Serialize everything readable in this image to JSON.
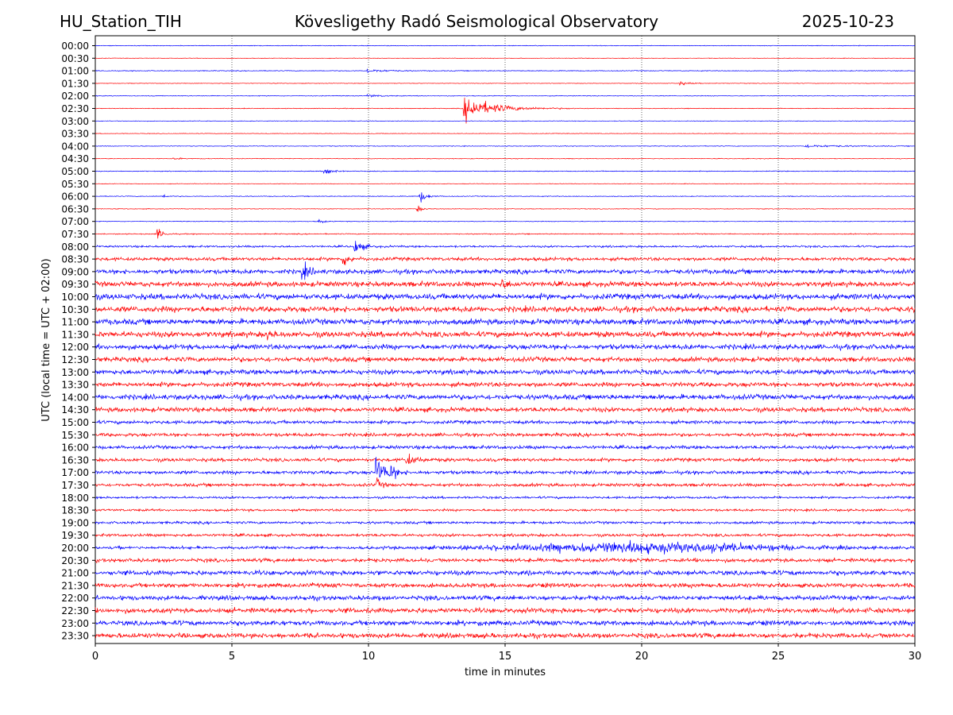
{
  "header": {
    "station": "HU_Station_TIH",
    "observatory": "Kövesligethy Radó Seismological Observatory",
    "date": "2025-10-23"
  },
  "chart_data": {
    "type": "line",
    "title": "Kövesligethy Radó Seismological Observatory",
    "xlabel": "time in minutes",
    "ylabel": "UTC (local time = UTC + 02:00)",
    "xlim": [
      0,
      30
    ],
    "xticks": [
      0,
      5,
      10,
      15,
      20,
      25,
      30
    ],
    "grid": "vertical dotted lines at 5-minute intervals",
    "colors": {
      "even": "#0000ff",
      "odd": "#ff0000"
    },
    "rows": [
      {
        "label": "00:00",
        "noise": 0.12,
        "events": []
      },
      {
        "label": "00:30",
        "noise": 0.1,
        "events": []
      },
      {
        "label": "01:00",
        "noise": 0.14,
        "events": [
          {
            "t": 10.0,
            "amp": 0.6,
            "dur": 1.5
          }
        ]
      },
      {
        "label": "01:30",
        "noise": 0.1,
        "events": [
          {
            "t": 21.4,
            "amp": 0.6,
            "dur": 0.8
          }
        ]
      },
      {
        "label": "02:00",
        "noise": 0.12,
        "events": [
          {
            "t": 10.0,
            "amp": 0.5,
            "dur": 1.0
          }
        ]
      },
      {
        "label": "02:30",
        "noise": 0.12,
        "events": [
          {
            "t": 13.5,
            "amp": 4.5,
            "dur": 2.5
          }
        ]
      },
      {
        "label": "03:00",
        "noise": 0.1,
        "events": []
      },
      {
        "label": "03:30",
        "noise": 0.1,
        "events": []
      },
      {
        "label": "04:00",
        "noise": 0.12,
        "events": [
          {
            "t": 26.0,
            "amp": 0.5,
            "dur": 3.0
          }
        ]
      },
      {
        "label": "04:30",
        "noise": 0.12,
        "events": [
          {
            "t": 2.9,
            "amp": 0.5,
            "dur": 0.4
          }
        ]
      },
      {
        "label": "05:00",
        "noise": 0.14,
        "events": [
          {
            "t": 8.4,
            "amp": 2.2,
            "dur": 0.5
          }
        ]
      },
      {
        "label": "05:30",
        "noise": 0.1,
        "events": []
      },
      {
        "label": "06:00",
        "noise": 0.14,
        "events": [
          {
            "t": 11.9,
            "amp": 2.2,
            "dur": 0.5
          },
          {
            "t": 2.5,
            "amp": 0.7,
            "dur": 0.3
          }
        ]
      },
      {
        "label": "06:30",
        "noise": 0.12,
        "events": [
          {
            "t": 11.8,
            "amp": 1.2,
            "dur": 0.4
          }
        ]
      },
      {
        "label": "07:00",
        "noise": 0.12,
        "events": [
          {
            "t": 8.2,
            "amp": 0.7,
            "dur": 0.4
          }
        ]
      },
      {
        "label": "07:30",
        "noise": 0.18,
        "events": [
          {
            "t": 2.3,
            "amp": 1.8,
            "dur": 0.5
          }
        ]
      },
      {
        "label": "08:00",
        "noise": 0.35,
        "events": [
          {
            "t": 9.5,
            "amp": 2.8,
            "dur": 0.6
          }
        ]
      },
      {
        "label": "08:30",
        "noise": 0.6,
        "events": [
          {
            "t": 9.1,
            "amp": 2.0,
            "dur": 0.6
          }
        ]
      },
      {
        "label": "09:00",
        "noise": 0.8,
        "events": [
          {
            "t": 7.6,
            "amp": 2.5,
            "dur": 0.6
          }
        ]
      },
      {
        "label": "09:30",
        "noise": 0.9,
        "events": [
          {
            "t": 14.9,
            "amp": 1.5,
            "dur": 0.5
          }
        ]
      },
      {
        "label": "10:00",
        "noise": 1.0,
        "events": []
      },
      {
        "label": "10:30",
        "noise": 1.0,
        "events": []
      },
      {
        "label": "11:00",
        "noise": 1.0,
        "events": []
      },
      {
        "label": "11:30",
        "noise": 1.0,
        "events": [
          {
            "t": 6.3,
            "amp": 1.5,
            "dur": 0.4
          }
        ]
      },
      {
        "label": "12:00",
        "noise": 0.9,
        "events": []
      },
      {
        "label": "12:30",
        "noise": 0.85,
        "events": []
      },
      {
        "label": "13:00",
        "noise": 0.85,
        "events": []
      },
      {
        "label": "13:30",
        "noise": 0.8,
        "events": []
      },
      {
        "label": "14:00",
        "noise": 0.9,
        "events": []
      },
      {
        "label": "14:30",
        "noise": 0.8,
        "events": []
      },
      {
        "label": "15:00",
        "noise": 0.6,
        "events": []
      },
      {
        "label": "15:30",
        "noise": 0.6,
        "events": []
      },
      {
        "label": "16:00",
        "noise": 0.6,
        "events": []
      },
      {
        "label": "16:30",
        "noise": 0.6,
        "events": [
          {
            "t": 11.4,
            "amp": 2.0,
            "dur": 0.7
          }
        ]
      },
      {
        "label": "17:00",
        "noise": 0.6,
        "events": [
          {
            "t": 10.3,
            "amp": 6.0,
            "dur": 0.6
          },
          {
            "t": 10.8,
            "amp": 2.5,
            "dur": 0.5
          }
        ]
      },
      {
        "label": "17:30",
        "noise": 0.55,
        "events": [
          {
            "t": 10.3,
            "amp": 2.0,
            "dur": 0.4
          }
        ]
      },
      {
        "label": "18:00",
        "noise": 0.4,
        "events": []
      },
      {
        "label": "18:30",
        "noise": 0.4,
        "events": []
      },
      {
        "label": "19:00",
        "noise": 0.45,
        "events": []
      },
      {
        "label": "19:30",
        "noise": 0.5,
        "events": []
      },
      {
        "label": "20:00",
        "noise": 0.5,
        "events": [
          {
            "t": 20.0,
            "amp": 2.0,
            "dur": 11.0
          }
        ]
      },
      {
        "label": "20:30",
        "noise": 0.65,
        "events": []
      },
      {
        "label": "21:00",
        "noise": 0.8,
        "events": []
      },
      {
        "label": "21:30",
        "noise": 0.75,
        "events": []
      },
      {
        "label": "22:00",
        "noise": 0.8,
        "events": []
      },
      {
        "label": "22:30",
        "noise": 0.85,
        "events": []
      },
      {
        "label": "23:00",
        "noise": 0.85,
        "events": []
      },
      {
        "label": "23:30",
        "noise": 0.85,
        "events": []
      }
    ]
  }
}
